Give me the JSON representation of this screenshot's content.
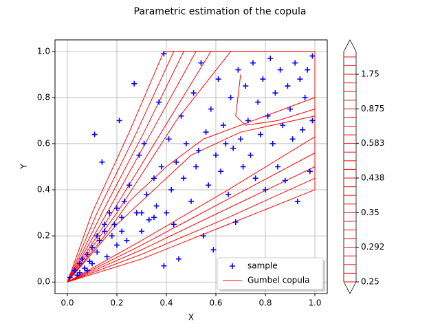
{
  "chart_data": {
    "type": "scatter",
    "title": "Parametric estimation of the copula",
    "x_label": "X",
    "y_label": "Y",
    "xlim": [
      -0.05,
      1.05
    ],
    "ylim": [
      -0.05,
      1.05
    ],
    "xticks": [
      {
        "value": 0,
        "label": "0.0"
      },
      0.2,
      0.4,
      0.6,
      0.8,
      {
        "value": 1,
        "label": "1.0"
      }
    ],
    "yticks": [
      {
        "value": 0,
        "label": "0.0"
      },
      0.2,
      0.4,
      0.6,
      0.8,
      {
        "value": 1,
        "label": "1.0"
      }
    ],
    "grid": true,
    "legend": "lower right",
    "series": [
      {
        "name": "sample",
        "color": "blue",
        "x": [
          0.01,
          0.03,
          0.04,
          0.05,
          0.06,
          0.07,
          0.08,
          0.09,
          0.1,
          0.11,
          0.12,
          0.13,
          0.14,
          0.15,
          0.16,
          0.17,
          0.18,
          0.19,
          0.2,
          0.21,
          0.22,
          0.23,
          0.24,
          0.25,
          0.27,
          0.28,
          0.29,
          0.3,
          0.31,
          0.32,
          0.33,
          0.35,
          0.36,
          0.37,
          0.38,
          0.39,
          0.39,
          0.4,
          0.41,
          0.42,
          0.43,
          0.44,
          0.45,
          0.46,
          0.47,
          0.48,
          0.5,
          0.51,
          0.52,
          0.53,
          0.54,
          0.55,
          0.56,
          0.57,
          0.58,
          0.59,
          0.6,
          0.61,
          0.62,
          0.63,
          0.64,
          0.65,
          0.66,
          0.67,
          0.68,
          0.69,
          0.7,
          0.71,
          0.72,
          0.73,
          0.74,
          0.75,
          0.76,
          0.77,
          0.78,
          0.79,
          0.8,
          0.81,
          0.82,
          0.83,
          0.84,
          0.85,
          0.86,
          0.87,
          0.88,
          0.89,
          0.9,
          0.91,
          0.92,
          0.93,
          0.94,
          0.95,
          0.96,
          0.97,
          0.98,
          0.99,
          0.99,
          0.12,
          0.1,
          0.15,
          0.22,
          0.08,
          0.3,
          0.35,
          0.2,
          0.05
        ],
        "y": [
          0.02,
          0.05,
          0.03,
          0.08,
          0.1,
          0.06,
          0.12,
          0.09,
          0.15,
          0.64,
          0.13,
          0.18,
          0.52,
          0.22,
          0.11,
          0.3,
          0.2,
          0.25,
          0.16,
          0.7,
          0.28,
          0.35,
          0.18,
          0.42,
          0.86,
          0.3,
          0.55,
          0.22,
          0.6,
          0.38,
          0.27,
          0.45,
          0.33,
          0.78,
          0.5,
          0.07,
          0.99,
          0.3,
          0.62,
          0.4,
          0.25,
          0.52,
          0.1,
          0.72,
          0.45,
          0.6,
          0.35,
          0.82,
          0.5,
          0.57,
          0.95,
          0.2,
          0.65,
          0.42,
          0.75,
          0.14,
          0.55,
          0.88,
          0.48,
          0.68,
          0.6,
          0.38,
          0.8,
          0.58,
          0.26,
          0.92,
          0.62,
          0.5,
          0.85,
          0.7,
          0.55,
          0.95,
          0.45,
          0.78,
          0.64,
          0.88,
          0.4,
          0.72,
          0.97,
          0.6,
          0.82,
          0.5,
          0.92,
          0.68,
          0.44,
          0.85,
          0.75,
          0.62,
          0.95,
          0.35,
          0.88,
          0.66,
          0.8,
          0.92,
          0.48,
          0.98,
          0.7,
          0.2,
          0.08,
          0.25,
          0.22,
          0.05,
          0.3,
          0.28,
          0.32,
          0.04
        ]
      },
      {
        "name": "Gumbel copula",
        "color": "red",
        "lines": [
          {
            "x": [
              0,
              0.1,
              0.25,
              0.39
            ],
            "y": [
              0,
              0.3,
              0.65,
              1
            ]
          },
          {
            "x": [
              0,
              0.12,
              0.28,
              0.43
            ],
            "y": [
              0,
              0.3,
              0.65,
              1
            ]
          },
          {
            "x": [
              0,
              0.14,
              0.31,
              0.47
            ],
            "y": [
              0,
              0.3,
              0.65,
              1
            ]
          },
          {
            "x": [
              0,
              0.16,
              0.34,
              0.52
            ],
            "y": [
              0,
              0.3,
              0.65,
              1
            ]
          },
          {
            "x": [
              0,
              0.18,
              0.38,
              0.58
            ],
            "y": [
              0,
              0.3,
              0.65,
              1
            ]
          },
          {
            "x": [
              0,
              0.2,
              0.44,
              0.66
            ],
            "y": [
              0,
              0.3,
              0.7,
              1
            ]
          },
          {
            "x": [
              0,
              0.3,
              0.65,
              1
            ],
            "y": [
              0,
              0.1,
              0.25,
              0.4
            ]
          },
          {
            "x": [
              0,
              0.3,
              0.65,
              1
            ],
            "y": [
              0,
              0.12,
              0.28,
              0.45
            ]
          },
          {
            "x": [
              0,
              0.3,
              0.65,
              1
            ],
            "y": [
              0,
              0.14,
              0.32,
              0.5
            ]
          },
          {
            "x": [
              0,
              0.3,
              0.65,
              1
            ],
            "y": [
              0,
              0.16,
              0.36,
              0.56
            ]
          },
          {
            "x": [
              0,
              0.3,
              0.65,
              1
            ],
            "y": [
              0,
              0.18,
              0.4,
              0.63
            ]
          },
          {
            "x": [
              0,
              0.2,
              0.3,
              0.5,
              0.7,
              1
            ],
            "y": [
              0,
              0.25,
              0.35,
              0.55,
              0.65,
              0.72
            ]
          },
          {
            "x": [
              0,
              0.15,
              0.25,
              0.4,
              0.55,
              0.75,
              1
            ],
            "y": [
              0,
              0.2,
              0.35,
              0.5,
              0.62,
              0.7,
              0.8
            ]
          },
          {
            "x": [
              0.7,
              0.68,
              0.72,
              0.85,
              1
            ],
            "y": [
              0.9,
              0.72,
              0.68,
              0.7,
              0.75
            ]
          },
          {
            "x": [
              0.39,
              1
            ],
            "y": [
              1,
              1
            ]
          },
          {
            "x": [
              1,
              1
            ],
            "y": [
              1,
              0.4
            ]
          }
        ]
      }
    ],
    "colorbar": {
      "ticks": [
        0.25,
        0.292,
        0.35,
        0.438,
        0.583,
        0.875,
        1.75
      ],
      "color": "red"
    }
  }
}
